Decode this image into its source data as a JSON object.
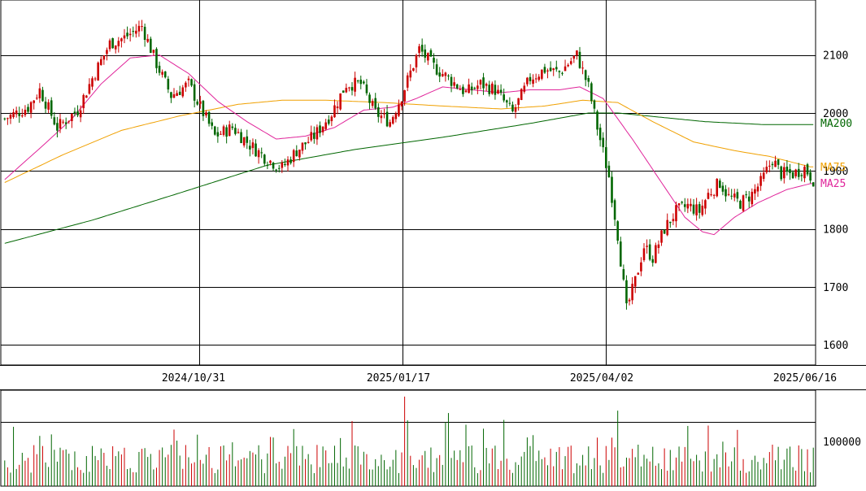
{
  "chart_data": [
    {
      "type": "candlestick",
      "title": "",
      "y_ticks": [
        1600,
        1700,
        1800,
        1900,
        2000,
        2100
      ],
      "ylim": [
        1565,
        2195
      ],
      "date_labels": [
        "2024/10/31",
        "2025/01/17",
        "2025/04/02",
        "2025/06/16"
      ],
      "colors": {
        "up": "#cc0000",
        "down": "#006600",
        "ma25": "#e0249a",
        "ma75": "#f0a000",
        "ma200": "#006600",
        "grid": "#000000"
      },
      "legend": [
        {
          "id": "ma200",
          "label": "MA200",
          "value": 1982
        },
        {
          "id": "ma75",
          "label": "MA75",
          "value": 1905
        },
        {
          "id": "ma25",
          "label": "MA25",
          "value": 1882
        }
      ],
      "close_anchors": [
        [
          0,
          1990
        ],
        [
          8,
          2010
        ],
        [
          12,
          2040
        ],
        [
          18,
          1975
        ],
        [
          25,
          2005
        ],
        [
          30,
          2060
        ],
        [
          36,
          2120
        ],
        [
          41,
          2130
        ],
        [
          47,
          2150
        ],
        [
          52,
          2085
        ],
        [
          57,
          2030
        ],
        [
          63,
          2050
        ],
        [
          67,
          2010
        ],
        [
          72,
          1960
        ],
        [
          78,
          1975
        ],
        [
          84,
          1945
        ],
        [
          90,
          1920
        ],
        [
          95,
          1905
        ],
        [
          100,
          1935
        ],
        [
          106,
          1960
        ],
        [
          112,
          2000
        ],
        [
          117,
          2050
        ],
        [
          122,
          2050
        ],
        [
          127,
          2000
        ],
        [
          132,
          1985
        ],
        [
          136,
          2030
        ],
        [
          142,
          2110
        ],
        [
          147,
          2080
        ],
        [
          152,
          2060
        ],
        [
          158,
          2035
        ],
        [
          163,
          2050
        ],
        [
          168,
          2040
        ],
        [
          174,
          2000
        ],
        [
          180,
          2060
        ],
        [
          185,
          2075
        ],
        [
          190,
          2070
        ],
        [
          196,
          2100
        ],
        [
          200,
          2045
        ],
        [
          203,
          1975
        ],
        [
          207,
          1890
        ],
        [
          210,
          1790
        ],
        [
          213,
          1660
        ],
        [
          216,
          1710
        ],
        [
          219,
          1770
        ],
        [
          222,
          1750
        ],
        [
          226,
          1800
        ],
        [
          230,
          1830
        ],
        [
          234,
          1840
        ],
        [
          238,
          1830
        ],
        [
          241,
          1860
        ],
        [
          245,
          1880
        ],
        [
          248,
          1855
        ],
        [
          252,
          1845
        ],
        [
          256,
          1860
        ],
        [
          259,
          1880
        ],
        [
          263,
          1920
        ],
        [
          266,
          1895
        ],
        [
          270,
          1895
        ],
        [
          274,
          1905
        ],
        [
          277,
          1885
        ]
      ],
      "moving_averages": {
        "ma25": [
          [
            0,
            1885
          ],
          [
            14,
            1948
          ],
          [
            23,
            1990
          ],
          [
            33,
            2050
          ],
          [
            43,
            2095
          ],
          [
            53,
            2100
          ],
          [
            63,
            2068
          ],
          [
            73,
            2020
          ],
          [
            83,
            1985
          ],
          [
            93,
            1955
          ],
          [
            103,
            1960
          ],
          [
            113,
            1975
          ],
          [
            123,
            2005
          ],
          [
            133,
            2010
          ],
          [
            141,
            2025
          ],
          [
            150,
            2045
          ],
          [
            160,
            2040
          ],
          [
            170,
            2035
          ],
          [
            180,
            2040
          ],
          [
            190,
            2040
          ],
          [
            197,
            2045
          ],
          [
            205,
            2025
          ],
          [
            215,
            1955
          ],
          [
            225,
            1880
          ],
          [
            233,
            1820
          ],
          [
            239,
            1795
          ],
          [
            243,
            1790
          ],
          [
            250,
            1820
          ],
          [
            258,
            1845
          ],
          [
            268,
            1868
          ],
          [
            276,
            1878
          ]
        ],
        "ma75": [
          [
            0,
            1880
          ],
          [
            20,
            1928
          ],
          [
            40,
            1970
          ],
          [
            60,
            1995
          ],
          [
            80,
            2015
          ],
          [
            95,
            2022
          ],
          [
            110,
            2022
          ],
          [
            130,
            2018
          ],
          [
            150,
            2012
          ],
          [
            170,
            2007
          ],
          [
            185,
            2012
          ],
          [
            198,
            2022
          ],
          [
            210,
            2018
          ],
          [
            222,
            1985
          ],
          [
            236,
            1950
          ],
          [
            250,
            1935
          ],
          [
            262,
            1925
          ],
          [
            276,
            1907
          ]
        ],
        "ma200": [
          [
            0,
            1775
          ],
          [
            30,
            1815
          ],
          [
            60,
            1862
          ],
          [
            90,
            1910
          ],
          [
            120,
            1937
          ],
          [
            150,
            1958
          ],
          [
            180,
            1982
          ],
          [
            200,
            2000
          ],
          [
            210,
            2000
          ],
          [
            240,
            1985
          ],
          [
            260,
            1980
          ],
          [
            276,
            1980
          ]
        ]
      }
    },
    {
      "type": "bar",
      "title": "",
      "y_ticks": [
        100000
      ],
      "ylim": [
        0,
        150000
      ]
    }
  ]
}
